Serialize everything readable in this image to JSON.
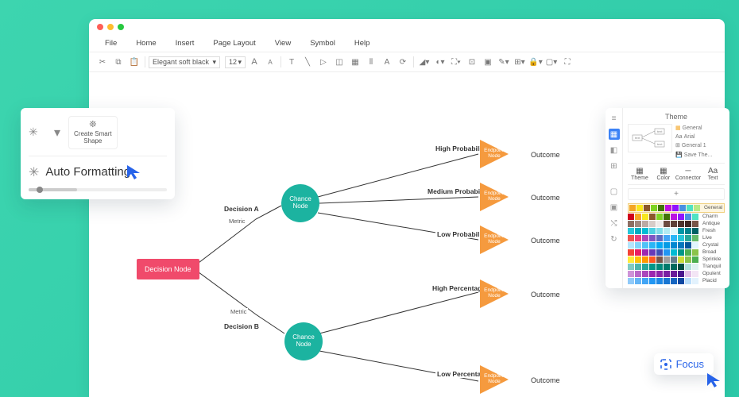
{
  "window": {
    "dots": [
      "#ff5f57",
      "#febc2e",
      "#28c840"
    ],
    "menu": [
      "File",
      "Home",
      "Insert",
      "Page Layout",
      "View",
      "Symbol",
      "Help"
    ],
    "font_name": "Elegant soft black",
    "font_size": "12"
  },
  "autocard": {
    "create_label": "Create Smart\nShape",
    "af_label": "Auto Formatting"
  },
  "diagram": {
    "decision_node": "Decision Node",
    "decision_a": "Decision A",
    "decision_b": "Decision B",
    "metric": "Metric",
    "chance_node": "Chance\nNode",
    "endpoint_node": "Endpoint\nNode",
    "outcome": "Outcome",
    "branches_top": [
      "High Probability",
      "Medium Probability",
      "Low Probability"
    ],
    "branches_bot": [
      "High Percentage",
      "Low Percentage"
    ],
    "colors": {
      "decision": "#f04a6b",
      "chance": "#1cb3a0",
      "endpoint": "#f59a3e",
      "line": "#333333"
    }
  },
  "theme": {
    "title": "Theme",
    "side_items": [
      "General",
      "Arial",
      "General 1",
      "Save The..."
    ],
    "tabs": [
      "Theme",
      "Color",
      "Connector",
      "Text"
    ],
    "palettes": [
      {
        "name": "General",
        "colors": [
          "#f5a623",
          "#f8e71c",
          "#8b572a",
          "#7ed321",
          "#417505",
          "#bd10e0",
          "#9013fe",
          "#4a90e2",
          "#50e3c2",
          "#b8e986"
        ]
      },
      {
        "name": "Charm",
        "colors": [
          "#d0021b",
          "#f5a623",
          "#f8e71c",
          "#8b572a",
          "#7ed321",
          "#417505",
          "#bd10e0",
          "#9013fe",
          "#4a90e2",
          "#50e3c2"
        ]
      },
      {
        "name": "Antique",
        "colors": [
          "#8d6e63",
          "#a1887f",
          "#bcaaa4",
          "#d7ccc8",
          "#efebe9",
          "#6d4c41",
          "#5d4037",
          "#4e342e",
          "#3e2723",
          "#795548"
        ]
      },
      {
        "name": "Fresh",
        "colors": [
          "#26c6da",
          "#00acc1",
          "#00bcd4",
          "#4dd0e1",
          "#80deea",
          "#b2ebf2",
          "#e0f7fa",
          "#0097a7",
          "#00838f",
          "#006064"
        ]
      },
      {
        "name": "Live",
        "colors": [
          "#ef5350",
          "#ec407a",
          "#ab47bc",
          "#7e57c2",
          "#5c6bc0",
          "#42a5f5",
          "#29b6f6",
          "#26c6da",
          "#26a69a",
          "#66bb6a"
        ]
      },
      {
        "name": "Crystal",
        "colors": [
          "#b3e5fc",
          "#81d4fa",
          "#4fc3f7",
          "#29b6f6",
          "#03a9f4",
          "#039be5",
          "#0288d1",
          "#0277bd",
          "#01579b",
          "#e1f5fe"
        ]
      },
      {
        "name": "Broad",
        "colors": [
          "#f44336",
          "#e91e63",
          "#9c27b0",
          "#673ab7",
          "#3f51b5",
          "#2196f3",
          "#00bcd4",
          "#009688",
          "#4caf50",
          "#8bc34a"
        ]
      },
      {
        "name": "Sprinkle",
        "colors": [
          "#ffeb3b",
          "#ffc107",
          "#ff9800",
          "#ff5722",
          "#795548",
          "#9e9e9e",
          "#607d8b",
          "#cddc39",
          "#8bc34a",
          "#4caf50"
        ]
      },
      {
        "name": "Tranquil",
        "colors": [
          "#80cbc4",
          "#4db6ac",
          "#26a69a",
          "#009688",
          "#00897b",
          "#00796b",
          "#00695c",
          "#004d40",
          "#b2dfdb",
          "#e0f2f1"
        ]
      },
      {
        "name": "Opulent",
        "colors": [
          "#ce93d8",
          "#ba68c8",
          "#ab47bc",
          "#9c27b0",
          "#8e24aa",
          "#7b1fa2",
          "#6a1b9a",
          "#4a148c",
          "#e1bee7",
          "#f3e5f5"
        ]
      },
      {
        "name": "Placid",
        "colors": [
          "#90caf9",
          "#64b5f6",
          "#42a5f5",
          "#2196f3",
          "#1e88e5",
          "#1976d2",
          "#1565c0",
          "#0d47a1",
          "#bbdefb",
          "#e3f2fd"
        ]
      }
    ]
  },
  "focus_label": "Focus"
}
